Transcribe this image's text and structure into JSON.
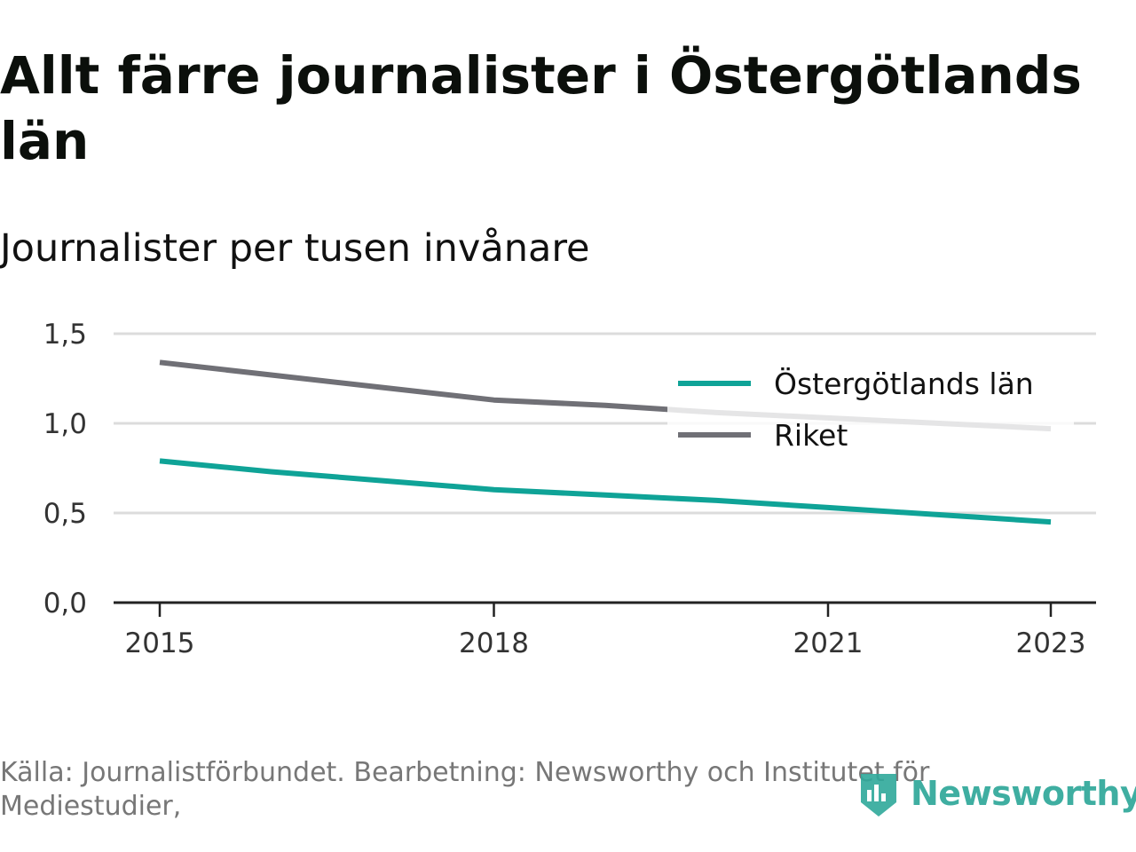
{
  "title": "Allt färre journalister i Östergötlands län",
  "subtitle": "Journalister per tusen invånare",
  "source": "Källa: Journalistförbundet. Bearbetning: Newsworthy och Institutet för Mediestudier,",
  "brand": {
    "name": "Newsworthy",
    "icon": "newsworthy-logo-icon",
    "color": "#2fa89a"
  },
  "chart_data": {
    "type": "line",
    "x": [
      2015,
      2016,
      2017,
      2018,
      2019,
      2020,
      2021,
      2022,
      2023
    ],
    "x_ticks": [
      2015,
      2018,
      2021,
      2023
    ],
    "y_ticks": [
      0,
      0.5,
      1,
      1.5
    ],
    "y_tick_labels": [
      "0,0",
      "0,5",
      "1,0",
      "1,5"
    ],
    "ylim": [
      0,
      1.5
    ],
    "xlim": [
      2015,
      2023
    ],
    "grid": true,
    "legend_position": "top-right",
    "series": [
      {
        "name": "Östergötlands län",
        "color": "#0fa397",
        "values": [
          0.79,
          0.73,
          0.68,
          0.63,
          0.6,
          0.57,
          0.53,
          0.49,
          0.45
        ]
      },
      {
        "name": "Riket",
        "color": "#707076",
        "values": [
          1.34,
          1.27,
          1.2,
          1.13,
          1.1,
          1.06,
          1.03,
          1.0,
          0.97
        ]
      }
    ]
  }
}
